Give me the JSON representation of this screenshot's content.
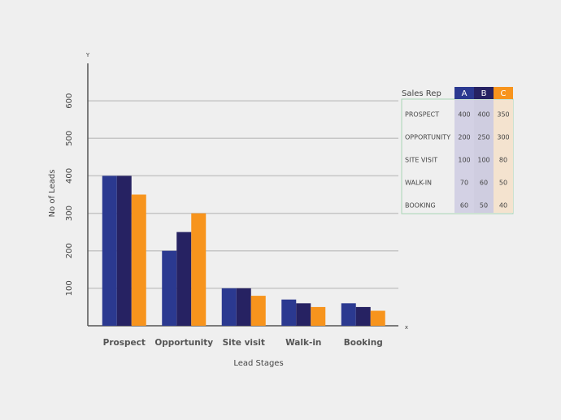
{
  "chart_data": {
    "type": "bar",
    "x_axis_marker": "x",
    "y_axis_marker": "Y",
    "xlabel": "Lead Stages",
    "ylabel": "No of  Leads",
    "categories": [
      "Prospect",
      "Opportunity",
      "Site visit",
      "Walk-in",
      "Booking"
    ],
    "series": [
      {
        "name": "A",
        "color": "#2b3990",
        "values": [
          400,
          200,
          100,
          70,
          60
        ]
      },
      {
        "name": "B",
        "color": "#262262",
        "values": [
          400,
          250,
          100,
          60,
          50
        ]
      },
      {
        "name": "C",
        "color": "#f7941d",
        "values": [
          350,
          300,
          80,
          50,
          40
        ]
      }
    ],
    "ylim": [
      0,
      700
    ],
    "yticks": [
      100,
      200,
      300,
      400,
      500,
      600
    ],
    "grid": true,
    "table": {
      "header": "Sales Rep",
      "rows": [
        "PROSPECT",
        "OPPORTUNITY",
        "SITE VISIT",
        "WALK-IN",
        "BOOKING"
      ]
    }
  }
}
